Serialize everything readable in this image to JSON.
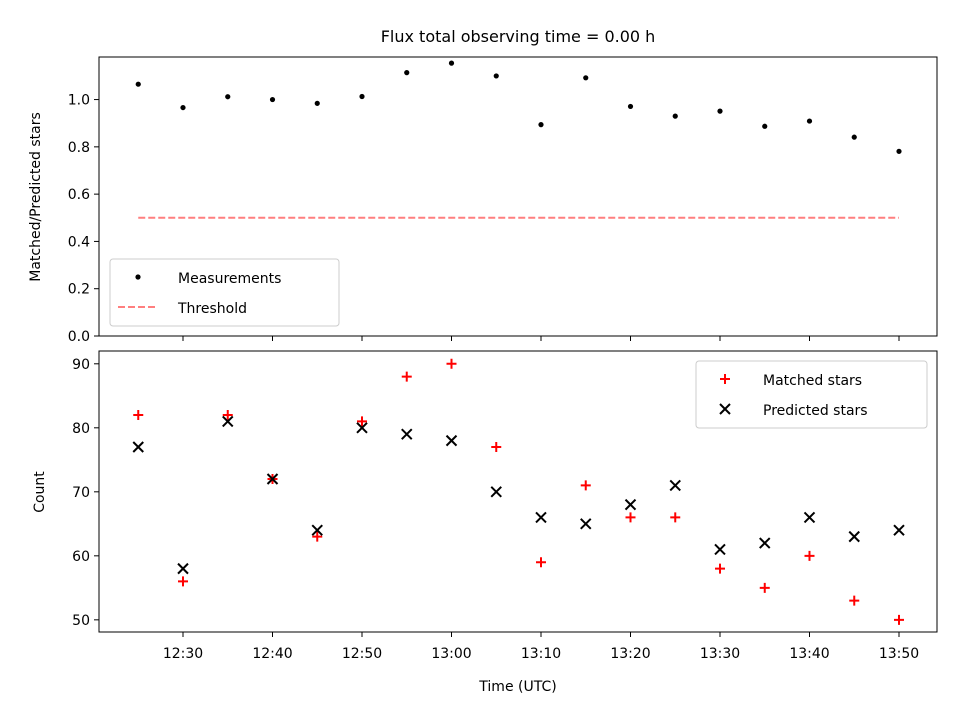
{
  "chart_data": [
    {
      "type": "scatter",
      "title": "Flux total observing time = 0.00 h",
      "xlabel": "",
      "ylabel": "Matched/Predicted stars",
      "ylim": [
        0,
        1.18
      ],
      "yticks": [
        "0.0",
        "0.2",
        "0.4",
        "0.6",
        "0.8",
        "1.0"
      ],
      "x": [
        "12:25",
        "12:30",
        "12:35",
        "12:40",
        "12:45",
        "12:50",
        "12:55",
        "13:00",
        "13:05",
        "13:10",
        "13:15",
        "13:20",
        "13:25",
        "13:30",
        "13:35",
        "13:40",
        "13:45",
        "13:50"
      ],
      "series": [
        {
          "name": "Measurements",
          "color": "#000000",
          "marker": "dot",
          "values": [
            1.065,
            0.966,
            1.012,
            1.0,
            0.984,
            1.013,
            1.114,
            1.154,
            1.1,
            0.894,
            1.092,
            0.971,
            0.93,
            0.951,
            0.887,
            0.909,
            0.841,
            0.781
          ]
        },
        {
          "name": "Threshold",
          "color": "#ff7f7f",
          "marker": "dashed-line",
          "values": [
            0.5,
            0.5
          ]
        }
      ],
      "legend": "lower-left"
    },
    {
      "type": "scatter",
      "xlabel": "Time (UTC)",
      "ylabel": "Count",
      "ylim": [
        48.1,
        92
      ],
      "yticks": [
        "50",
        "60",
        "70",
        "80",
        "90"
      ],
      "xticks": [
        "12:30",
        "12:40",
        "12:50",
        "13:00",
        "13:10",
        "13:20",
        "13:30",
        "13:40",
        "13:50"
      ],
      "x": [
        "12:25",
        "12:30",
        "12:35",
        "12:40",
        "12:45",
        "12:50",
        "12:55",
        "13:00",
        "13:05",
        "13:10",
        "13:15",
        "13:20",
        "13:25",
        "13:30",
        "13:35",
        "13:40",
        "13:45",
        "13:50"
      ],
      "series": [
        {
          "name": "Matched stars",
          "color": "#ff0000",
          "marker": "plus",
          "values": [
            82,
            56,
            82,
            72,
            63,
            81,
            88,
            90,
            77,
            59,
            71,
            66,
            66,
            58,
            55,
            60,
            53,
            50
          ]
        },
        {
          "name": "Predicted stars",
          "color": "#000000",
          "marker": "x",
          "values": [
            77,
            58,
            81,
            72,
            64,
            80,
            79,
            78,
            70,
            66,
            65,
            68,
            71,
            61,
            62,
            66,
            63,
            64
          ]
        }
      ],
      "legend": "upper-right"
    }
  ]
}
